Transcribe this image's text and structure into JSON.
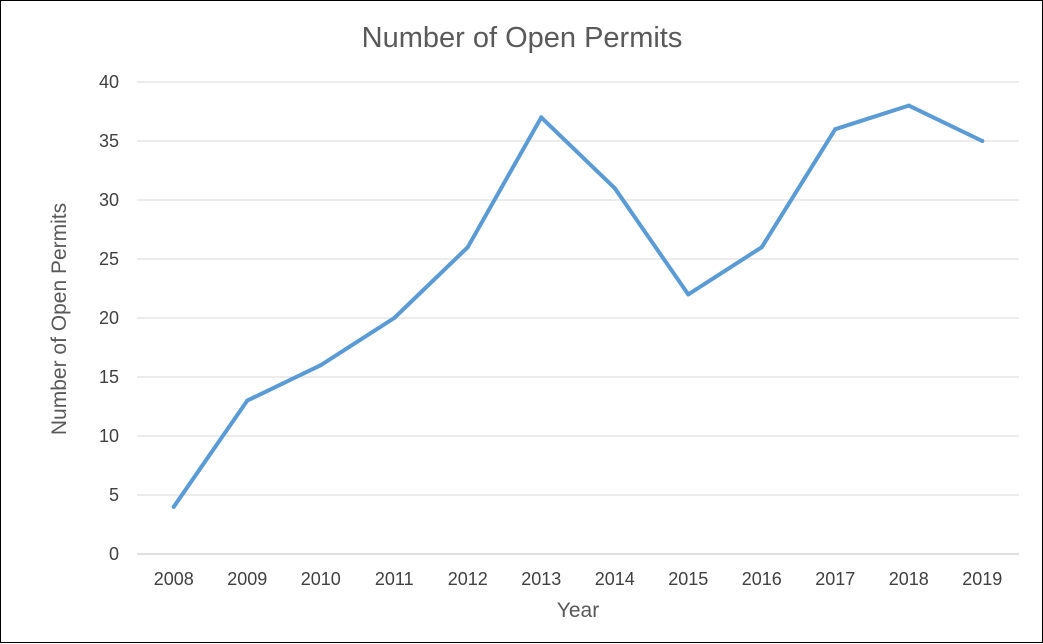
{
  "chart_data": {
    "type": "line",
    "title": "Number of Open Permits",
    "xlabel": "Year",
    "ylabel": "Number of Open Permits",
    "categories": [
      "2008",
      "2009",
      "2010",
      "2011",
      "2012",
      "2013",
      "2014",
      "2015",
      "2016",
      "2017",
      "2018",
      "2019"
    ],
    "series": [
      {
        "values": [
          4,
          13,
          16,
          20,
          26,
          37,
          31,
          22,
          26,
          36,
          38,
          35
        ],
        "color": "#5b9bd5"
      }
    ],
    "ylim": [
      0,
      40
    ],
    "yticks": [
      0,
      5,
      10,
      15,
      20,
      25,
      30,
      35,
      40
    ],
    "grid": true,
    "legend": "none"
  }
}
